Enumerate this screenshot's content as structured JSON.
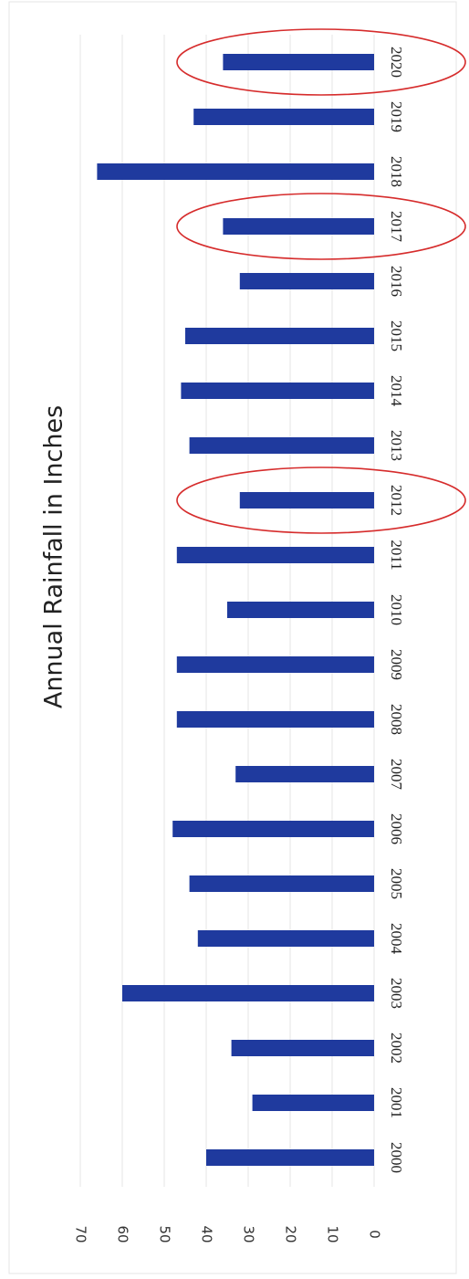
{
  "chart_data": {
    "type": "bar",
    "orientation": "horizontal",
    "title": "Annual Rainfall in Inches",
    "categories": [
      "2000",
      "2001",
      "2002",
      "2003",
      "2004",
      "2005",
      "2006",
      "2007",
      "2008",
      "2009",
      "2010",
      "2011",
      "2012",
      "2013",
      "2014",
      "2015",
      "2016",
      "2017",
      "2018",
      "2019",
      "2020"
    ],
    "values": [
      40,
      29,
      34,
      60,
      42,
      44,
      48,
      33,
      47,
      47,
      35,
      47,
      32,
      44,
      46,
      45,
      32,
      36,
      66,
      43,
      36
    ],
    "color": "#1f3a9e",
    "highlight": [
      12,
      17,
      20
    ],
    "highlight_color": "#d62c2c",
    "xlim": [
      0,
      70
    ],
    "xticks": [
      0,
      10,
      20,
      30,
      40,
      50,
      60,
      70
    ],
    "grid": true
  }
}
